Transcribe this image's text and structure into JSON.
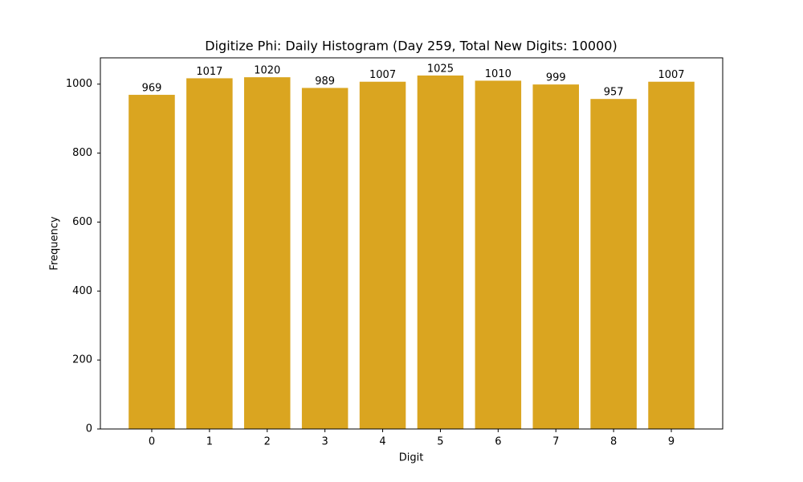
{
  "chart_data": {
    "type": "bar",
    "title": "Digitize Phi: Daily Histogram (Day 259, Total New Digits: 10000)",
    "x_label": "Digit",
    "y_label": "Frequency",
    "categories": [
      "0",
      "1",
      "2",
      "3",
      "4",
      "5",
      "6",
      "7",
      "8",
      "9"
    ],
    "values": [
      969,
      1017,
      1020,
      989,
      1007,
      1025,
      1010,
      999,
      957,
      1007
    ],
    "color": "#daa520",
    "ylim": [
      0,
      1076.25
    ],
    "yticks": [
      0,
      200,
      400,
      600,
      800,
      1000
    ],
    "grid": false
  }
}
